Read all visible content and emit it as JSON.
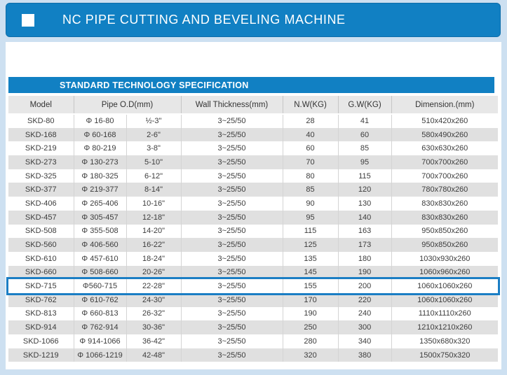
{
  "banner": {
    "title": "NC PIPE CUTTING AND BEVELING MACHINE"
  },
  "section": {
    "title": "STANDARD TECHNOLOGY SPECIFICATION"
  },
  "colors": {
    "accent_blue": "#1180c3",
    "highlight_border": "#1b7ec4",
    "page_background": "#cde0f1",
    "stripe_gray": "#e0e0e0",
    "header_gray": "#e7e7e7"
  },
  "table": {
    "headers": {
      "model": "Model",
      "pipe_od": "Pipe O.D(mm)",
      "wall": "Wall Thickness(mm)",
      "nw": "N.W(KG)",
      "gw": "G.W(KG)",
      "dim": "Dimension.(mm)"
    },
    "rows": [
      {
        "model": "SKD-80",
        "od_mm": "Φ 16-80",
        "od_in": "½-3\"",
        "wall": "3~25/50",
        "nw": "28",
        "gw": "41",
        "dim": "510x420x260",
        "highlight": false
      },
      {
        "model": "SKD-168",
        "od_mm": "Φ 60-168",
        "od_in": "2-6\"",
        "wall": "3~25/50",
        "nw": "40",
        "gw": "60",
        "dim": "580x490x260",
        "highlight": false
      },
      {
        "model": "SKD-219",
        "od_mm": "Φ 80-219",
        "od_in": "3-8\"",
        "wall": "3~25/50",
        "nw": "60",
        "gw": "85",
        "dim": "630x630x260",
        "highlight": false
      },
      {
        "model": "SKD-273",
        "od_mm": "Φ 130-273",
        "od_in": "5-10\"",
        "wall": "3~25/50",
        "nw": "70",
        "gw": "95",
        "dim": "700x700x260",
        "highlight": false
      },
      {
        "model": "SKD-325",
        "od_mm": "Φ 180-325",
        "od_in": "6-12\"",
        "wall": "3~25/50",
        "nw": "80",
        "gw": "115",
        "dim": "700x700x260",
        "highlight": false
      },
      {
        "model": "SKD-377",
        "od_mm": "Φ 219-377",
        "od_in": "8-14\"",
        "wall": "3~25/50",
        "nw": "85",
        "gw": "120",
        "dim": "780x780x260",
        "highlight": false
      },
      {
        "model": "SKD-406",
        "od_mm": "Φ 265-406",
        "od_in": "10-16\"",
        "wall": "3~25/50",
        "nw": "90",
        "gw": "130",
        "dim": "830x830x260",
        "highlight": false
      },
      {
        "model": "SKD-457",
        "od_mm": "Φ 305-457",
        "od_in": "12-18\"",
        "wall": "3~25/50",
        "nw": "95",
        "gw": "140",
        "dim": "830x830x260",
        "highlight": false
      },
      {
        "model": "SKD-508",
        "od_mm": "Φ 355-508",
        "od_in": "14-20\"",
        "wall": "3~25/50",
        "nw": "115",
        "gw": "163",
        "dim": "950x850x260",
        "highlight": false
      },
      {
        "model": "SKD-560",
        "od_mm": "Φ 406-560",
        "od_in": "16-22\"",
        "wall": "3~25/50",
        "nw": "125",
        "gw": "173",
        "dim": "950x850x260",
        "highlight": false
      },
      {
        "model": "SKD-610",
        "od_mm": "Φ 457-610",
        "od_in": "18-24\"",
        "wall": "3~25/50",
        "nw": "135",
        "gw": "180",
        "dim": "1030x930x260",
        "highlight": false
      },
      {
        "model": "SKD-660",
        "od_mm": "Φ 508-660",
        "od_in": "20-26\"",
        "wall": "3~25/50",
        "nw": "145",
        "gw": "190",
        "dim": "1060x960x260",
        "highlight": false
      },
      {
        "model": "SKD-715",
        "od_mm": "Φ560-715",
        "od_in": "22-28\"",
        "wall": "3~25/50",
        "nw": "155",
        "gw": "200",
        "dim": "1060x1060x260",
        "highlight": true
      },
      {
        "model": "SKD-762",
        "od_mm": "Φ 610-762",
        "od_in": "24-30\"",
        "wall": "3~25/50",
        "nw": "170",
        "gw": "220",
        "dim": "1060x1060x260",
        "highlight": false
      },
      {
        "model": "SKD-813",
        "od_mm": "Φ 660-813",
        "od_in": "26-32\"",
        "wall": "3~25/50",
        "nw": "190",
        "gw": "240",
        "dim": "1110x1110x260",
        "highlight": false
      },
      {
        "model": "SKD-914",
        "od_mm": "Φ 762-914",
        "od_in": "30-36\"",
        "wall": "3~25/50",
        "nw": "250",
        "gw": "300",
        "dim": "1210x1210x260",
        "highlight": false
      },
      {
        "model": "SKD-1066",
        "od_mm": "Φ 914-1066",
        "od_in": "36-42\"",
        "wall": "3~25/50",
        "nw": "280",
        "gw": "340",
        "dim": "1350x680x320",
        "highlight": false
      },
      {
        "model": "SKD-1219",
        "od_mm": "Φ 1066-1219",
        "od_in": "42-48\"",
        "wall": "3~25/50",
        "nw": "320",
        "gw": "380",
        "dim": "1500x750x320",
        "highlight": false
      }
    ]
  }
}
